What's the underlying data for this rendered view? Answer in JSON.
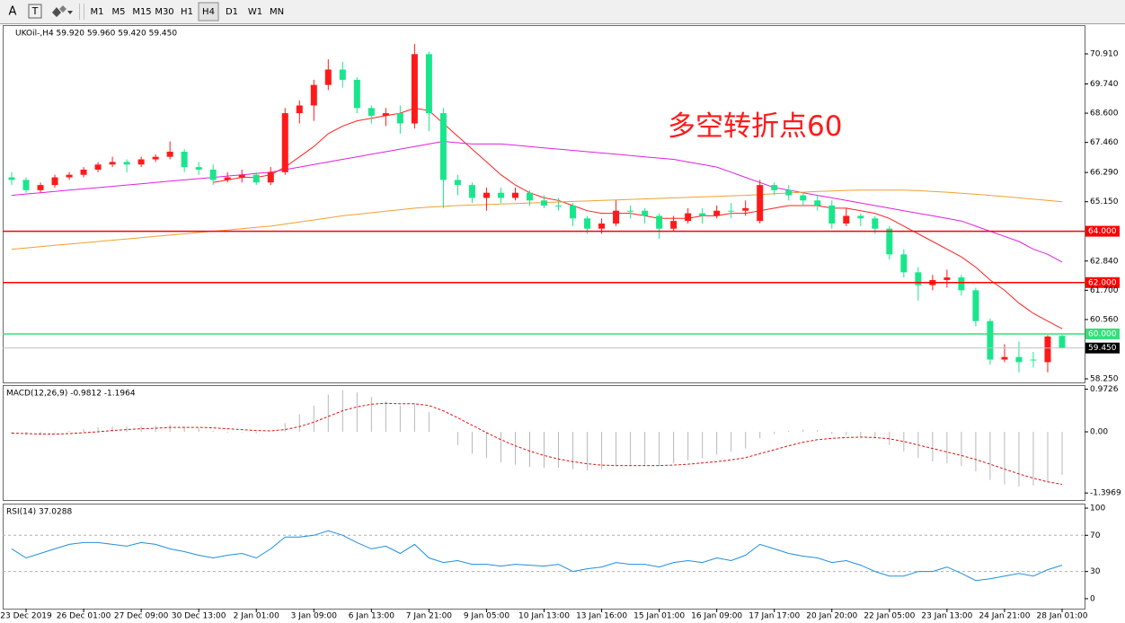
{
  "toolbar": {
    "tools": [
      "A",
      "T"
    ],
    "timeframes": [
      "M1",
      "M5",
      "M15",
      "M30",
      "H1",
      "H4",
      "D1",
      "W1",
      "MN"
    ],
    "active": "H4"
  },
  "chart_data": [
    {
      "type": "candlestick",
      "title": "UKOil-,H4 59.920 59.960 59.420 59.450",
      "annotation": "多空转折点60",
      "up_color": "#ff1a1a",
      "down_color": "#19e68c",
      "open": [
        66.1,
        66.0,
        65.6,
        65.8,
        66.1,
        66.2,
        66.4,
        66.6,
        66.7,
        66.6,
        66.8,
        66.9,
        67.1,
        66.5,
        66.4,
        66.0,
        66.1,
        66.2,
        65.9,
        66.3,
        68.6,
        68.9,
        69.7,
        70.3,
        69.9,
        68.8,
        68.5,
        68.6,
        68.2,
        70.9,
        68.6,
        66.0,
        65.8,
        65.3,
        65.5,
        65.3,
        65.5,
        65.2,
        65.0,
        65.0,
        64.5,
        64.1,
        64.3,
        64.8,
        64.8,
        64.6,
        64.1,
        64.4,
        64.7,
        64.6,
        64.8,
        64.8,
        64.4,
        65.8,
        65.6,
        65.4,
        65.2,
        65.0,
        64.3,
        64.6,
        64.5,
        64.1,
        63.1,
        62.4,
        61.9,
        62.1,
        62.2,
        61.7,
        60.5,
        59.0,
        59.1,
        59.0,
        58.9,
        59.92
      ],
      "high": [
        66.3,
        66.1,
        65.9,
        66.2,
        66.3,
        66.5,
        66.7,
        66.9,
        66.8,
        66.9,
        67.0,
        67.5,
        67.2,
        66.7,
        66.6,
        66.3,
        66.4,
        66.3,
        66.5,
        68.8,
        69.1,
        69.9,
        70.7,
        70.6,
        70.0,
        68.9,
        68.8,
        68.9,
        71.3,
        71.0,
        68.8,
        66.2,
        65.9,
        65.7,
        65.7,
        65.7,
        65.6,
        65.4,
        65.3,
        65.1,
        64.6,
        64.5,
        65.2,
        65.0,
        64.9,
        64.7,
        64.6,
        64.9,
        64.9,
        65.0,
        65.1,
        65.2,
        66.0,
        65.9,
        65.8,
        65.5,
        65.4,
        65.2,
        64.9,
        64.7,
        64.6,
        64.2,
        63.3,
        62.6,
        62.3,
        62.5,
        62.3,
        61.8,
        60.6,
        59.6,
        59.7,
        59.3,
        59.95,
        59.96
      ],
      "low": [
        65.8,
        65.5,
        65.5,
        65.7,
        66.0,
        66.1,
        66.3,
        66.5,
        66.3,
        66.5,
        66.7,
        66.8,
        66.3,
        66.2,
        65.8,
        65.9,
        65.9,
        65.8,
        65.8,
        66.2,
        68.2,
        68.3,
        69.5,
        69.6,
        68.6,
        68.2,
        68.1,
        67.8,
        68.0,
        67.9,
        64.9,
        65.4,
        65.1,
        64.8,
        65.1,
        65.2,
        65.0,
        64.9,
        64.8,
        64.2,
        63.9,
        63.9,
        64.2,
        64.5,
        64.3,
        63.7,
        64.0,
        64.3,
        64.3,
        64.5,
        64.5,
        64.6,
        64.3,
        65.4,
        65.2,
        65.0,
        64.8,
        64.1,
        64.2,
        64.2,
        63.9,
        62.9,
        62.2,
        61.3,
        61.7,
        61.8,
        61.5,
        60.3,
        58.8,
        58.9,
        58.5,
        58.7,
        58.5,
        59.42
      ],
      "close": [
        66.0,
        65.6,
        65.8,
        66.1,
        66.2,
        66.4,
        66.6,
        66.7,
        66.6,
        66.8,
        66.9,
        67.1,
        66.5,
        66.4,
        66.0,
        66.1,
        66.2,
        65.9,
        66.3,
        68.6,
        68.9,
        69.7,
        70.3,
        69.9,
        68.8,
        68.5,
        68.6,
        68.2,
        70.9,
        68.6,
        66.0,
        65.8,
        65.3,
        65.5,
        65.3,
        65.5,
        65.2,
        65.0,
        65.0,
        64.5,
        64.1,
        64.3,
        64.8,
        64.8,
        64.6,
        64.1,
        64.4,
        64.7,
        64.6,
        64.8,
        64.8,
        64.9,
        65.8,
        65.6,
        65.4,
        65.2,
        65.0,
        64.3,
        64.6,
        64.5,
        64.1,
        63.1,
        62.4,
        61.9,
        62.1,
        62.2,
        61.7,
        60.5,
        59.0,
        59.1,
        58.9,
        59.0,
        59.9,
        59.45
      ],
      "ma": [
        {
          "color": "#ff2020",
          "values": [
            null,
            null,
            null,
            null,
            null,
            null,
            null,
            null,
            null,
            null,
            null,
            null,
            null,
            null,
            65.9,
            66.0,
            66.1,
            66.1,
            66.2,
            66.5,
            66.9,
            67.3,
            67.8,
            68.1,
            68.3,
            68.4,
            68.5,
            68.6,
            68.8,
            68.7,
            68.2,
            67.7,
            67.2,
            66.7,
            66.2,
            65.8,
            65.5,
            65.3,
            65.2,
            65.0,
            64.8,
            64.7,
            64.7,
            64.7,
            64.6,
            64.5,
            64.5,
            64.5,
            64.6,
            64.6,
            64.7,
            64.7,
            64.8,
            64.9,
            65.0,
            65.0,
            65.0,
            64.9,
            64.9,
            64.8,
            64.7,
            64.5,
            64.2,
            63.9,
            63.6,
            63.3,
            63.0,
            62.6,
            62.1,
            61.7,
            61.2,
            60.8,
            60.5,
            60.2
          ]
        },
        {
          "color": "#e020e0",
          "values": [
            65.4,
            65.45,
            65.5,
            65.55,
            65.6,
            65.65,
            65.7,
            65.75,
            65.8,
            65.85,
            65.9,
            65.95,
            66.0,
            66.05,
            66.1,
            66.15,
            66.2,
            66.25,
            66.3,
            66.4,
            66.5,
            66.6,
            66.7,
            66.8,
            66.9,
            67.0,
            67.1,
            67.2,
            67.3,
            67.4,
            67.5,
            67.45,
            67.4,
            67.4,
            67.4,
            67.35,
            67.3,
            67.25,
            67.2,
            67.15,
            67.1,
            67.05,
            67.0,
            66.95,
            66.9,
            66.85,
            66.8,
            66.7,
            66.6,
            66.5,
            66.3,
            66.1,
            65.9,
            65.7,
            65.6,
            65.5,
            65.4,
            65.3,
            65.2,
            65.1,
            65.0,
            64.9,
            64.8,
            64.7,
            64.6,
            64.5,
            64.4,
            64.2,
            64.0,
            63.8,
            63.6,
            63.3,
            63.1,
            62.8
          ]
        },
        {
          "color": "#f0a030",
          "values": [
            63.3,
            63.35,
            63.4,
            63.45,
            63.5,
            63.55,
            63.6,
            63.65,
            63.7,
            63.75,
            63.8,
            63.85,
            63.9,
            63.95,
            64.0,
            64.05,
            64.1,
            64.15,
            64.2,
            64.28,
            64.36,
            64.44,
            64.52,
            64.6,
            64.66,
            64.72,
            64.78,
            64.84,
            64.9,
            64.94,
            64.97,
            65.0,
            65.02,
            65.04,
            65.06,
            65.08,
            65.1,
            65.12,
            65.14,
            65.16,
            65.18,
            65.2,
            65.22,
            65.24,
            65.26,
            65.28,
            65.3,
            65.32,
            65.34,
            65.36,
            65.38,
            65.4,
            65.43,
            65.46,
            65.49,
            65.52,
            65.55,
            65.57,
            65.59,
            65.6,
            65.6,
            65.6,
            65.6,
            65.58,
            65.55,
            65.52,
            65.48,
            65.44,
            65.4,
            65.35,
            65.3,
            65.25,
            65.2,
            65.15
          ]
        }
      ],
      "hlines": [
        {
          "value": 64,
          "label": "64.000",
          "color": "#ff0000"
        },
        {
          "value": 62,
          "label": "62.000",
          "color": "#ff0000"
        },
        {
          "value": 60,
          "label": "60.000",
          "color": "#33e07a"
        }
      ],
      "last": {
        "value": 59.45,
        "label": "59.450",
        "color": "#c0c0c0"
      },
      "ylim": [
        58.11,
        72.03
      ],
      "yticks": [
        {
          "value": 70.91,
          "label": "70.910"
        },
        {
          "value": 69.74,
          "label": "69.740"
        },
        {
          "value": 68.6,
          "label": "68.600"
        },
        {
          "value": 67.46,
          "label": "67.460"
        },
        {
          "value": 66.29,
          "label": "66.290"
        },
        {
          "value": 65.15,
          "label": "65.150"
        },
        {
          "value": 62.84,
          "label": "62.840"
        },
        {
          "value": 61.7,
          "label": "61.700"
        },
        {
          "value": 60.56,
          "label": "60.560"
        },
        {
          "value": 58.25,
          "label": "58.250"
        }
      ]
    },
    {
      "type": "macd",
      "title": "MACD(12,26,9) -0.9812 -1.1964",
      "histogram": {
        "color": "#b8b8b8",
        "values": [
          -0.05,
          -0.08,
          -0.06,
          -0.02,
          0.02,
          0.06,
          0.1,
          0.12,
          0.12,
          0.13,
          0.14,
          0.16,
          0.12,
          0.08,
          0.02,
          -0.02,
          -0.01,
          -0.03,
          0.0,
          0.2,
          0.4,
          0.6,
          0.85,
          0.95,
          0.9,
          0.8,
          0.7,
          0.6,
          0.65,
          0.45,
          0.0,
          -0.3,
          -0.5,
          -0.6,
          -0.7,
          -0.75,
          -0.8,
          -0.82,
          -0.82,
          -0.85,
          -0.88,
          -0.85,
          -0.78,
          -0.75,
          -0.75,
          -0.78,
          -0.72,
          -0.65,
          -0.6,
          -0.52,
          -0.45,
          -0.38,
          -0.15,
          -0.05,
          0.02,
          0.05,
          0.04,
          -0.05,
          -0.08,
          -0.1,
          -0.15,
          -0.3,
          -0.45,
          -0.6,
          -0.68,
          -0.72,
          -0.78,
          -0.9,
          -1.1,
          -1.2,
          -1.25,
          -1.22,
          -1.15,
          -0.98
        ]
      },
      "signal": {
        "color": "#e01010",
        "values": [
          -0.03,
          -0.04,
          -0.05,
          -0.05,
          -0.04,
          -0.02,
          0.0,
          0.03,
          0.05,
          0.07,
          0.08,
          0.1,
          0.1,
          0.1,
          0.09,
          0.07,
          0.05,
          0.03,
          0.02,
          0.05,
          0.12,
          0.22,
          0.35,
          0.48,
          0.57,
          0.63,
          0.65,
          0.64,
          0.64,
          0.6,
          0.48,
          0.32,
          0.15,
          -0.02,
          -0.18,
          -0.32,
          -0.44,
          -0.54,
          -0.62,
          -0.68,
          -0.73,
          -0.76,
          -0.77,
          -0.77,
          -0.77,
          -0.77,
          -0.76,
          -0.74,
          -0.71,
          -0.68,
          -0.64,
          -0.59,
          -0.5,
          -0.41,
          -0.32,
          -0.24,
          -0.18,
          -0.15,
          -0.13,
          -0.12,
          -0.13,
          -0.16,
          -0.22,
          -0.3,
          -0.38,
          -0.46,
          -0.54,
          -0.63,
          -0.74,
          -0.85,
          -0.96,
          -1.06,
          -1.14,
          -1.2
        ]
      },
      "ylim": [
        -1.557,
        1.066
      ],
      "yticks": [
        0.9726,
        {
          "value": 0,
          "label": "0.00"
        },
        -1.3969
      ]
    },
    {
      "type": "line",
      "title": "RSI(14) 37.0288",
      "color": "#1e8fe0",
      "values": [
        55,
        45,
        50,
        55,
        60,
        62,
        62,
        60,
        58,
        62,
        60,
        55,
        52,
        48,
        45,
        48,
        50,
        45,
        55,
        68,
        68,
        70,
        75,
        70,
        62,
        55,
        58,
        50,
        60,
        45,
        40,
        42,
        38,
        38,
        36,
        38,
        37,
        36,
        38,
        30,
        33,
        35,
        40,
        38,
        38,
        35,
        40,
        42,
        40,
        45,
        42,
        48,
        60,
        55,
        50,
        47,
        45,
        40,
        42,
        37,
        30,
        25,
        25,
        30,
        30,
        35,
        28,
        20,
        22,
        25,
        28,
        25,
        32,
        37
      ],
      "levels": [
        70,
        30
      ],
      "ylim": [
        -11,
        105
      ],
      "yticks": [
        100,
        70,
        30,
        0
      ],
      "categories": [
        null,
        "23 Dec 2019",
        null,
        null,
        null,
        "26 Dec 01:00",
        null,
        null,
        null,
        "27 Dec 09:00",
        null,
        null,
        null,
        "30 Dec 13:00",
        null,
        null,
        null,
        "2 Jan 01:00",
        null,
        null,
        null,
        "3 Jan 09:00",
        null,
        null,
        null,
        "6 Jan 13:00",
        null,
        null,
        null,
        "7 Jan 21:00",
        null,
        null,
        null,
        "9 Jan 05:00",
        null,
        null,
        null,
        "10 Jan 13:00",
        null,
        null,
        null,
        "13 Jan 16:00",
        null,
        null,
        null,
        "15 Jan 01:00",
        null,
        null,
        null,
        "16 Jan 09:00",
        null,
        null,
        null,
        "17 Jan 17:00",
        null,
        null,
        null,
        "20 Jan 20:00",
        null,
        null,
        null,
        "22 Jan 05:00",
        null,
        null,
        null,
        "23 Jan 13:00",
        null,
        null,
        null,
        "24 Jan 21:00",
        null,
        null,
        null,
        "28 Jan 01:00"
      ]
    }
  ]
}
